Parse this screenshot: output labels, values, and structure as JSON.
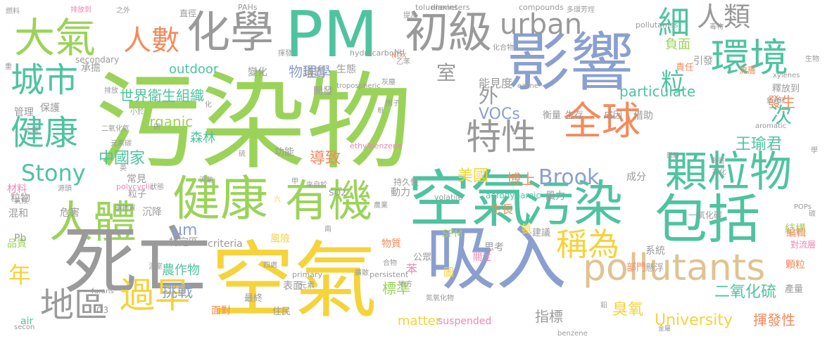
{
  "palette": {
    "green": "#9bd35a",
    "gray": "#9a9a9a",
    "teal": "#4fc3a0",
    "blue": "#8a9fd0",
    "yellow": "#f5d33a",
    "orange": "#f48a5c",
    "tan": "#e0c392",
    "pink": "#ee86b6",
    "lime": "#b6de6a"
  },
  "words": [
    {
      "t": "污染物",
      "c": "green"
    },
    {
      "t": "空氣",
      "c": "yellow"
    },
    {
      "t": "PM",
      "c": "teal"
    },
    {
      "t": "影響",
      "c": "blue"
    },
    {
      "t": "吸入",
      "c": "blue"
    },
    {
      "t": "空氣",
      "c": "teal"
    },
    {
      "t": "污染",
      "c": "teal"
    },
    {
      "t": "健康",
      "c": "green"
    },
    {
      "t": "有機",
      "c": "green"
    },
    {
      "t": "人體",
      "c": "green"
    },
    {
      "t": "死亡",
      "c": "gray"
    },
    {
      "t": "化學",
      "c": "gray"
    },
    {
      "t": "大氣",
      "c": "green"
    },
    {
      "t": "初級",
      "c": "gray"
    },
    {
      "t": "包括",
      "c": "teal"
    },
    {
      "t": "pollutants",
      "c": "tan"
    },
    {
      "t": "顆粒物",
      "c": "teal"
    },
    {
      "t": "全球",
      "c": "orange"
    },
    {
      "t": "環境",
      "c": "teal"
    },
    {
      "t": "urban",
      "c": "gray"
    },
    {
      "t": "人數",
      "c": "orange"
    },
    {
      "t": "城市",
      "c": "teal"
    },
    {
      "t": "健康",
      "c": "teal"
    },
    {
      "t": "特性",
      "c": "gray"
    },
    {
      "t": "過早",
      "c": "yellow"
    },
    {
      "t": "地區",
      "c": "gray"
    },
    {
      "t": "稱為",
      "c": "yellow"
    },
    {
      "t": "Stony",
      "c": "teal"
    },
    {
      "t": "Brook",
      "c": "blue"
    },
    {
      "t": "University",
      "c": "yellow"
    },
    {
      "t": "particulate",
      "c": "teal"
    },
    {
      "t": "中國家",
      "c": "teal"
    },
    {
      "t": "世界衛生組織",
      "c": "teal"
    },
    {
      "t": "物理學",
      "c": "blue"
    },
    {
      "t": "organic",
      "c": "green"
    },
    {
      "t": "outdoor",
      "c": "teal"
    },
    {
      "t": "matter",
      "c": "yellow"
    },
    {
      "t": "VOCs",
      "c": "blue"
    },
    {
      "t": "王瑜君",
      "c": "teal"
    },
    {
      "t": "二氧化硫",
      "c": "teal"
    },
    {
      "t": "揮發性",
      "c": "orange"
    },
    {
      "t": "臭氧",
      "c": "yellow"
    },
    {
      "t": "指標",
      "c": "gray"
    },
    {
      "t": "標準",
      "c": "green"
    },
    {
      "t": "挑戰",
      "c": "blue"
    },
    {
      "t": "農作物",
      "c": "teal"
    },
    {
      "t": "美國",
      "c": "yellow"
    },
    {
      "t": "導致",
      "c": "orange"
    },
    {
      "t": "森林",
      "c": "teal"
    },
    {
      "t": "博士",
      "c": "orange"
    },
    {
      "t": "發生",
      "c": "orange"
    },
    {
      "t": "人類",
      "c": "gray"
    },
    {
      "t": "負面",
      "c": "green"
    },
    {
      "t": "引發",
      "c": "gray"
    },
    {
      "t": "議題",
      "c": "gray"
    },
    {
      "t": "承擔",
      "c": "gray"
    },
    {
      "t": "變化",
      "c": "gray"
    },
    {
      "t": "生態",
      "c": "gray"
    },
    {
      "t": "能見度",
      "c": "gray"
    },
    {
      "t": "開發",
      "c": "gray"
    },
    {
      "t": "保護",
      "c": "gray"
    },
    {
      "t": "管理",
      "c": "gray"
    },
    {
      "t": "常見",
      "c": "gray"
    },
    {
      "t": "粒子",
      "c": "gray"
    },
    {
      "t": "功能",
      "c": "gray"
    },
    {
      "t": "沉降",
      "c": "gray"
    },
    {
      "t": "危害",
      "c": "gray"
    },
    {
      "t": "混和",
      "c": "gray"
    },
    {
      "t": "粒物",
      "c": "gray"
    },
    {
      "t": "材料",
      "c": "pink"
    },
    {
      "t": "品質",
      "c": "green"
    },
    {
      "t": "μm",
      "c": "blue"
    },
    {
      "t": "特定區",
      "c": "gray"
    },
    {
      "t": "criteria",
      "c": "gray"
    },
    {
      "t": "風險",
      "c": "yellow"
    },
    {
      "t": "物質",
      "c": "orange"
    },
    {
      "t": "公眾",
      "c": "gray"
    },
    {
      "t": "思考",
      "c": "gray"
    },
    {
      "t": "關注",
      "c": "pink"
    },
    {
      "t": "圖",
      "c": "yellow"
    },
    {
      "t": "表面",
      "c": "gray"
    },
    {
      "t": "住民",
      "c": "gray"
    },
    {
      "t": "最終",
      "c": "gray"
    },
    {
      "t": "面對",
      "c": "orange"
    },
    {
      "t": "suspended",
      "c": "pink"
    },
    {
      "t": "系統",
      "c": "gray"
    },
    {
      "t": "懸浮",
      "c": "gray"
    },
    {
      "t": "部門",
      "c": "orange"
    },
    {
      "t": "顆粒",
      "c": "orange"
    },
    {
      "t": "產量",
      "c": "gray"
    },
    {
      "t": "結構",
      "c": "green"
    },
    {
      "t": "編輯",
      "c": "orange"
    },
    {
      "t": "對流層",
      "c": "pink"
    },
    {
      "t": "一氧化碳",
      "c": "gray"
    },
    {
      "t": "建議",
      "c": "gray"
    },
    {
      "t": "成分",
      "c": "gray"
    },
    {
      "t": "風力",
      "c": "gray"
    },
    {
      "t": "生長",
      "c": "orange"
    },
    {
      "t": "動力",
      "c": "gray"
    },
    {
      "t": "aerodynamic",
      "c": "teal"
    },
    {
      "t": "SPM",
      "c": "green"
    },
    {
      "t": "衡量",
      "c": "gray"
    },
    {
      "t": "生存",
      "c": "gray"
    },
    {
      "t": "成因",
      "c": "gray"
    },
    {
      "t": "借助",
      "c": "gray"
    },
    {
      "t": "釋放到",
      "c": "gray"
    },
    {
      "t": "責任",
      "c": "orange"
    },
    {
      "t": "流層",
      "c": "orange"
    },
    {
      "t": "室",
      "c": "gray"
    },
    {
      "t": "外",
      "c": "gray"
    },
    {
      "t": "細",
      "c": "teal"
    },
    {
      "t": "粒",
      "c": "teal"
    },
    {
      "t": "次",
      "c": "teal"
    },
    {
      "t": "年",
      "c": "yellow"
    },
    {
      "t": "苯",
      "c": "pink"
    },
    {
      "t": "氨",
      "c": "yellow"
    },
    {
      "t": "Pb",
      "c": "gray"
    },
    {
      "t": "O3",
      "c": "gray"
    },
    {
      "t": "air",
      "c": "teal"
    },
    {
      "t": "secondary",
      "c": "gray"
    },
    {
      "t": "primary",
      "c": "gray"
    },
    {
      "t": "persistent",
      "c": "gray"
    },
    {
      "t": "volatile",
      "c": "gray"
    },
    {
      "t": "polycyclic",
      "c": "pink"
    },
    {
      "t": "ethylbenzene",
      "c": "pink"
    },
    {
      "t": "compounds",
      "c": "gray"
    },
    {
      "t": "diameters",
      "c": "gray"
    },
    {
      "t": "dioxins",
      "c": "gray"
    },
    {
      "t": "toluene",
      "c": "gray"
    },
    {
      "t": "PAHs",
      "c": "gray"
    },
    {
      "t": "pollutantss",
      "c": "gray"
    },
    {
      "t": "hydrocarbons",
      "c": "gray"
    },
    {
      "t": "NOX",
      "c": "orange"
    },
    {
      "t": "SO2",
      "c": "gray"
    },
    {
      "t": "tropospheric",
      "c": "gray"
    },
    {
      "t": "ozone",
      "c": "gray"
    },
    {
      "t": "xylenes",
      "c": "gray"
    },
    {
      "t": "aromatic",
      "c": "gray"
    },
    {
      "t": "benzene",
      "c": "gray"
    },
    {
      "t": "furans",
      "c": "gray"
    },
    {
      "t": "secon",
      "c": "gray"
    },
    {
      "t": "POPs",
      "c": "gray"
    },
    {
      "t": "二氧化氮",
      "c": "gray"
    },
    {
      "t": "多環芳烴",
      "c": "gray"
    },
    {
      "t": "直徑",
      "c": "gray"
    },
    {
      "t": "燃料",
      "c": "gray"
    },
    {
      "t": "之外",
      "c": "gray"
    },
    {
      "t": "排放到",
      "c": "pink"
    },
    {
      "t": "揮發",
      "c": "gray"
    },
    {
      "t": "有害",
      "c": "gray"
    },
    {
      "t": "持久性",
      "c": "gray"
    },
    {
      "t": "六",
      "c": "yellow"
    },
    {
      "t": "元素",
      "c": "gray"
    },
    {
      "t": "兩",
      "c": "gray"
    },
    {
      "t": "四處",
      "c": "gray"
    },
    {
      "t": "合物",
      "c": "gray"
    },
    {
      "t": "地方",
      "c": "gray"
    },
    {
      "t": "氮氧化物",
      "c": "gray"
    },
    {
      "t": "鉛",
      "c": "gray"
    },
    {
      "t": "金屬",
      "c": "gray"
    },
    {
      "t": "固體",
      "c": "gray"
    },
    {
      "t": "石化",
      "c": "gray"
    },
    {
      "t": "氣溶膠",
      "c": "gray"
    },
    {
      "t": "NH",
      "c": "gray"
    },
    {
      "t": "乙苯",
      "c": "gray"
    },
    {
      "t": "灰塵",
      "c": "gray"
    },
    {
      "t": "例子",
      "c": "gray"
    },
    {
      "t": "溫室",
      "c": "gray"
    },
    {
      "t": "化合物",
      "c": "gray"
    },
    {
      "t": "生物",
      "c": "gray"
    },
    {
      "t": "粗",
      "c": "gray"
    },
    {
      "t": "甲",
      "c": "gray"
    },
    {
      "t": "流動",
      "c": "gray"
    },
    {
      "t": "農業",
      "c": "gray"
    },
    {
      "t": "礦物質",
      "c": "gray"
    },
    {
      "t": "排放",
      "c": "gray"
    },
    {
      "t": "小於",
      "c": "gray"
    },
    {
      "t": "土壤",
      "c": "gray"
    },
    {
      "t": "硫",
      "c": "gray"
    },
    {
      "t": "化",
      "c": "gray"
    },
    {
      "t": "英",
      "c": "gray"
    },
    {
      "t": "碳",
      "c": "gray"
    },
    {
      "t": "學",
      "c": "gray"
    },
    {
      "t": "重",
      "c": "gray"
    },
    {
      "t": "研",
      "c": "gray"
    },
    {
      "t": "來自於",
      "c": "gray"
    },
    {
      "t": "氣候",
      "c": "gray"
    },
    {
      "t": "源頭",
      "c": "gray"
    },
    {
      "t": "狀態",
      "c": "gray"
    },
    {
      "t": "擴散",
      "c": "gray"
    },
    {
      "t": "毒物",
      "c": "gray"
    },
    {
      "t": "提及",
      "c": "gray"
    },
    {
      "t": "元素碳",
      "c": "gray"
    },
    {
      "t": "碳氫",
      "c": "gray"
    },
    {
      "t": "二氧化氮",
      "c": "gray"
    }
  ]
}
